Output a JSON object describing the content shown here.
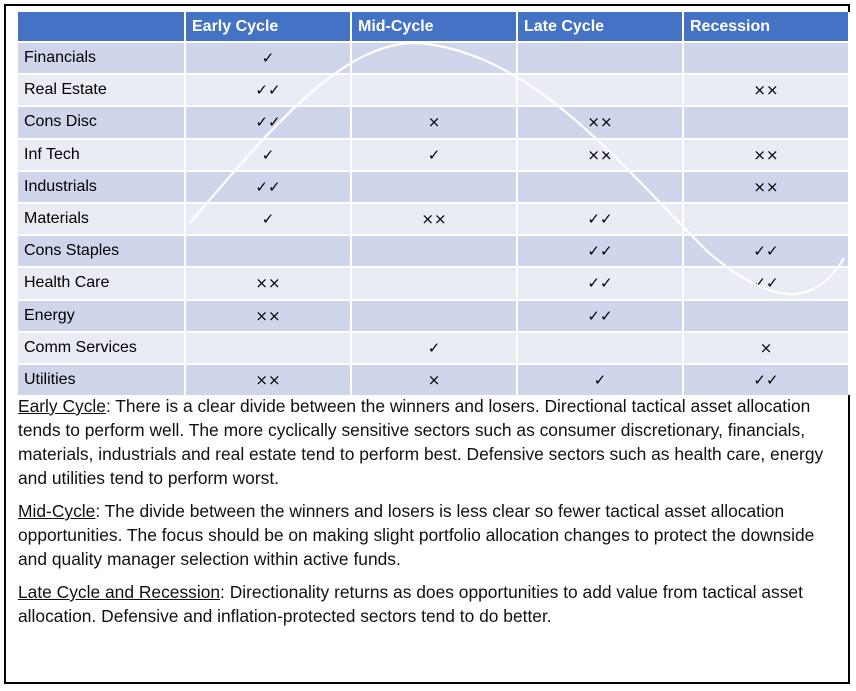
{
  "table": {
    "headers": [
      "",
      "Early Cycle",
      "Mid-Cycle",
      "Late Cycle",
      "Recession"
    ],
    "rows": [
      {
        "sector": "Financials",
        "early": "✓",
        "mid": "",
        "late": "",
        "recession": ""
      },
      {
        "sector": "Real Estate",
        "early": "✓✓",
        "mid": "",
        "late": "",
        "recession": "××"
      },
      {
        "sector": "Cons Disc",
        "early": "✓✓",
        "mid": "×",
        "late": "××",
        "recession": ""
      },
      {
        "sector": "Inf Tech",
        "early": "✓",
        "mid": "✓",
        "late": "××",
        "recession": "××"
      },
      {
        "sector": "Industrials",
        "early": "✓✓",
        "mid": "",
        "late": "",
        "recession": "××"
      },
      {
        "sector": "Materials",
        "early": "✓",
        "mid": "××",
        "late": "✓✓",
        "recession": ""
      },
      {
        "sector": "Cons Staples",
        "early": "",
        "mid": "",
        "late": "✓✓",
        "recession": "✓✓"
      },
      {
        "sector": "Health Care",
        "early": "××",
        "mid": "",
        "late": "✓✓",
        "recession": "✓✓"
      },
      {
        "sector": "Energy",
        "early": "××",
        "mid": "",
        "late": "✓✓",
        "recession": ""
      },
      {
        "sector": "Comm Services",
        "early": "",
        "mid": "✓",
        "late": "",
        "recession": "×"
      },
      {
        "sector": "Utilities",
        "early": "××",
        "mid": "×",
        "late": "✓",
        "recession": "✓✓"
      }
    ]
  },
  "notes": [
    {
      "term": "Early Cycle",
      "text": ": There is a clear divide between the winners and losers. Directional tactical asset allocation tends to perform well. The more cyclically sensitive sectors such as consumer discretionary, financials, materials, industrials and real estate tend to perform best. Defensive sectors such as health care, energy and utilities tend to perform worst."
    },
    {
      "term": "Mid-Cycle",
      "text": ": The divide between the winners and losers is less clear so fewer tactical asset allocation opportunities. The focus should be on making slight portfolio allocation changes to protect the downside and quality manager selection within active funds."
    },
    {
      "term": "Late Cycle and Recession",
      "text": ": Directionality returns as does opportunities to add value from tactical asset allocation. Defensive and inflation-protected sectors tend to do better."
    }
  ]
}
